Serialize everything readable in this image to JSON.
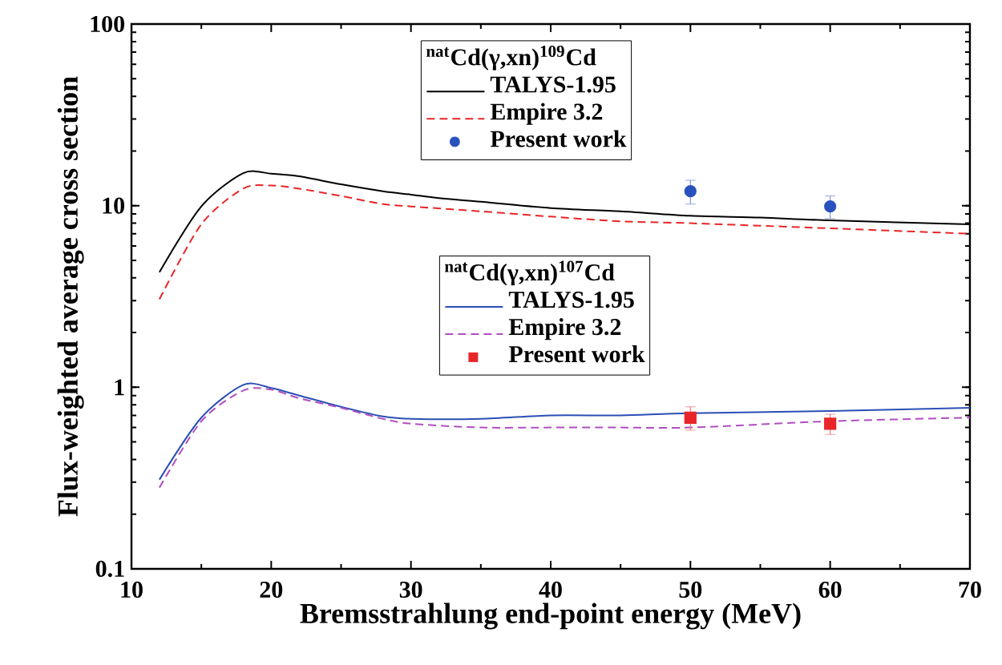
{
  "chart_data": {
    "type": "line",
    "xlabel": "Bremsstrahlung end-point energy (MeV)",
    "ylabel": "Flux-weighted average cross section",
    "log": "y",
    "xlim": [
      10,
      70
    ],
    "xticks": [
      10,
      20,
      30,
      40,
      50,
      60,
      70
    ],
    "ylim": [
      0.1,
      100
    ],
    "yticks": [
      0.1,
      1,
      10,
      100
    ],
    "legend": "top",
    "annotations": [
      "$^{nat}$Cd(γ,xn)$^{109}$Cd",
      "$^{nat}$Cd(γ,xn)$^{107}$Cd"
    ],
    "series": [
      {
        "name": "TALYS-1.95",
        "color": "#000000",
        "line_style": "solid",
        "x": [
          12,
          15,
          18,
          20,
          22,
          25,
          28,
          30,
          32,
          35,
          40,
          45,
          50,
          55,
          60,
          70
        ],
        "values": [
          4.3,
          9.9,
          15.1,
          15,
          14.5,
          13.1,
          12,
          11.5,
          11,
          10.5,
          9.7,
          9.3,
          8.8,
          8.6,
          8.3,
          7.9
        ]
      },
      {
        "name": "Empire 3.2",
        "color": "#e8262a",
        "line_style": "dashed",
        "x": [
          12,
          15,
          18,
          20,
          22,
          25,
          28,
          30,
          35,
          40,
          45,
          50,
          60,
          70
        ],
        "values": [
          3.05,
          7.9,
          12.4,
          12.9,
          12.4,
          11.3,
          10.2,
          9.9,
          9.3,
          8.7,
          8.2,
          8,
          7.5,
          7
        ]
      },
      {
        "name": "Present work",
        "color": "#2a52be",
        "type": "scatter",
        "marker": "circle",
        "x": [
          50,
          60
        ],
        "values": [
          12,
          9.9
        ],
        "errors": [
          1.8,
          1.4
        ]
      },
      {
        "name": "TALYS-1.95",
        "color": "#2a4fb5",
        "line_style": "solid",
        "x": [
          12,
          15,
          18,
          20,
          22,
          25,
          28,
          30,
          35,
          40,
          45,
          50,
          60,
          70
        ],
        "values": [
          0.31,
          0.68,
          1.03,
          0.99,
          0.9,
          0.78,
          0.69,
          0.67,
          0.67,
          0.7,
          0.7,
          0.72,
          0.74,
          0.77
        ]
      },
      {
        "name": "Empire 3.2",
        "color": "#b04fc0",
        "line_style": "dashed",
        "x": [
          12,
          15,
          18,
          20,
          22,
          25,
          28,
          30,
          35,
          40,
          45,
          50,
          60,
          70
        ],
        "values": [
          0.28,
          0.65,
          0.96,
          0.97,
          0.87,
          0.77,
          0.67,
          0.63,
          0.6,
          0.6,
          0.6,
          0.6,
          0.65,
          0.68
        ]
      },
      {
        "name": "Present work",
        "color": "#e8262a",
        "type": "scatter",
        "marker": "square",
        "x": [
          50,
          60
        ],
        "values": [
          0.68,
          0.63
        ],
        "errors": [
          0.1,
          0.08
        ]
      }
    ]
  }
}
